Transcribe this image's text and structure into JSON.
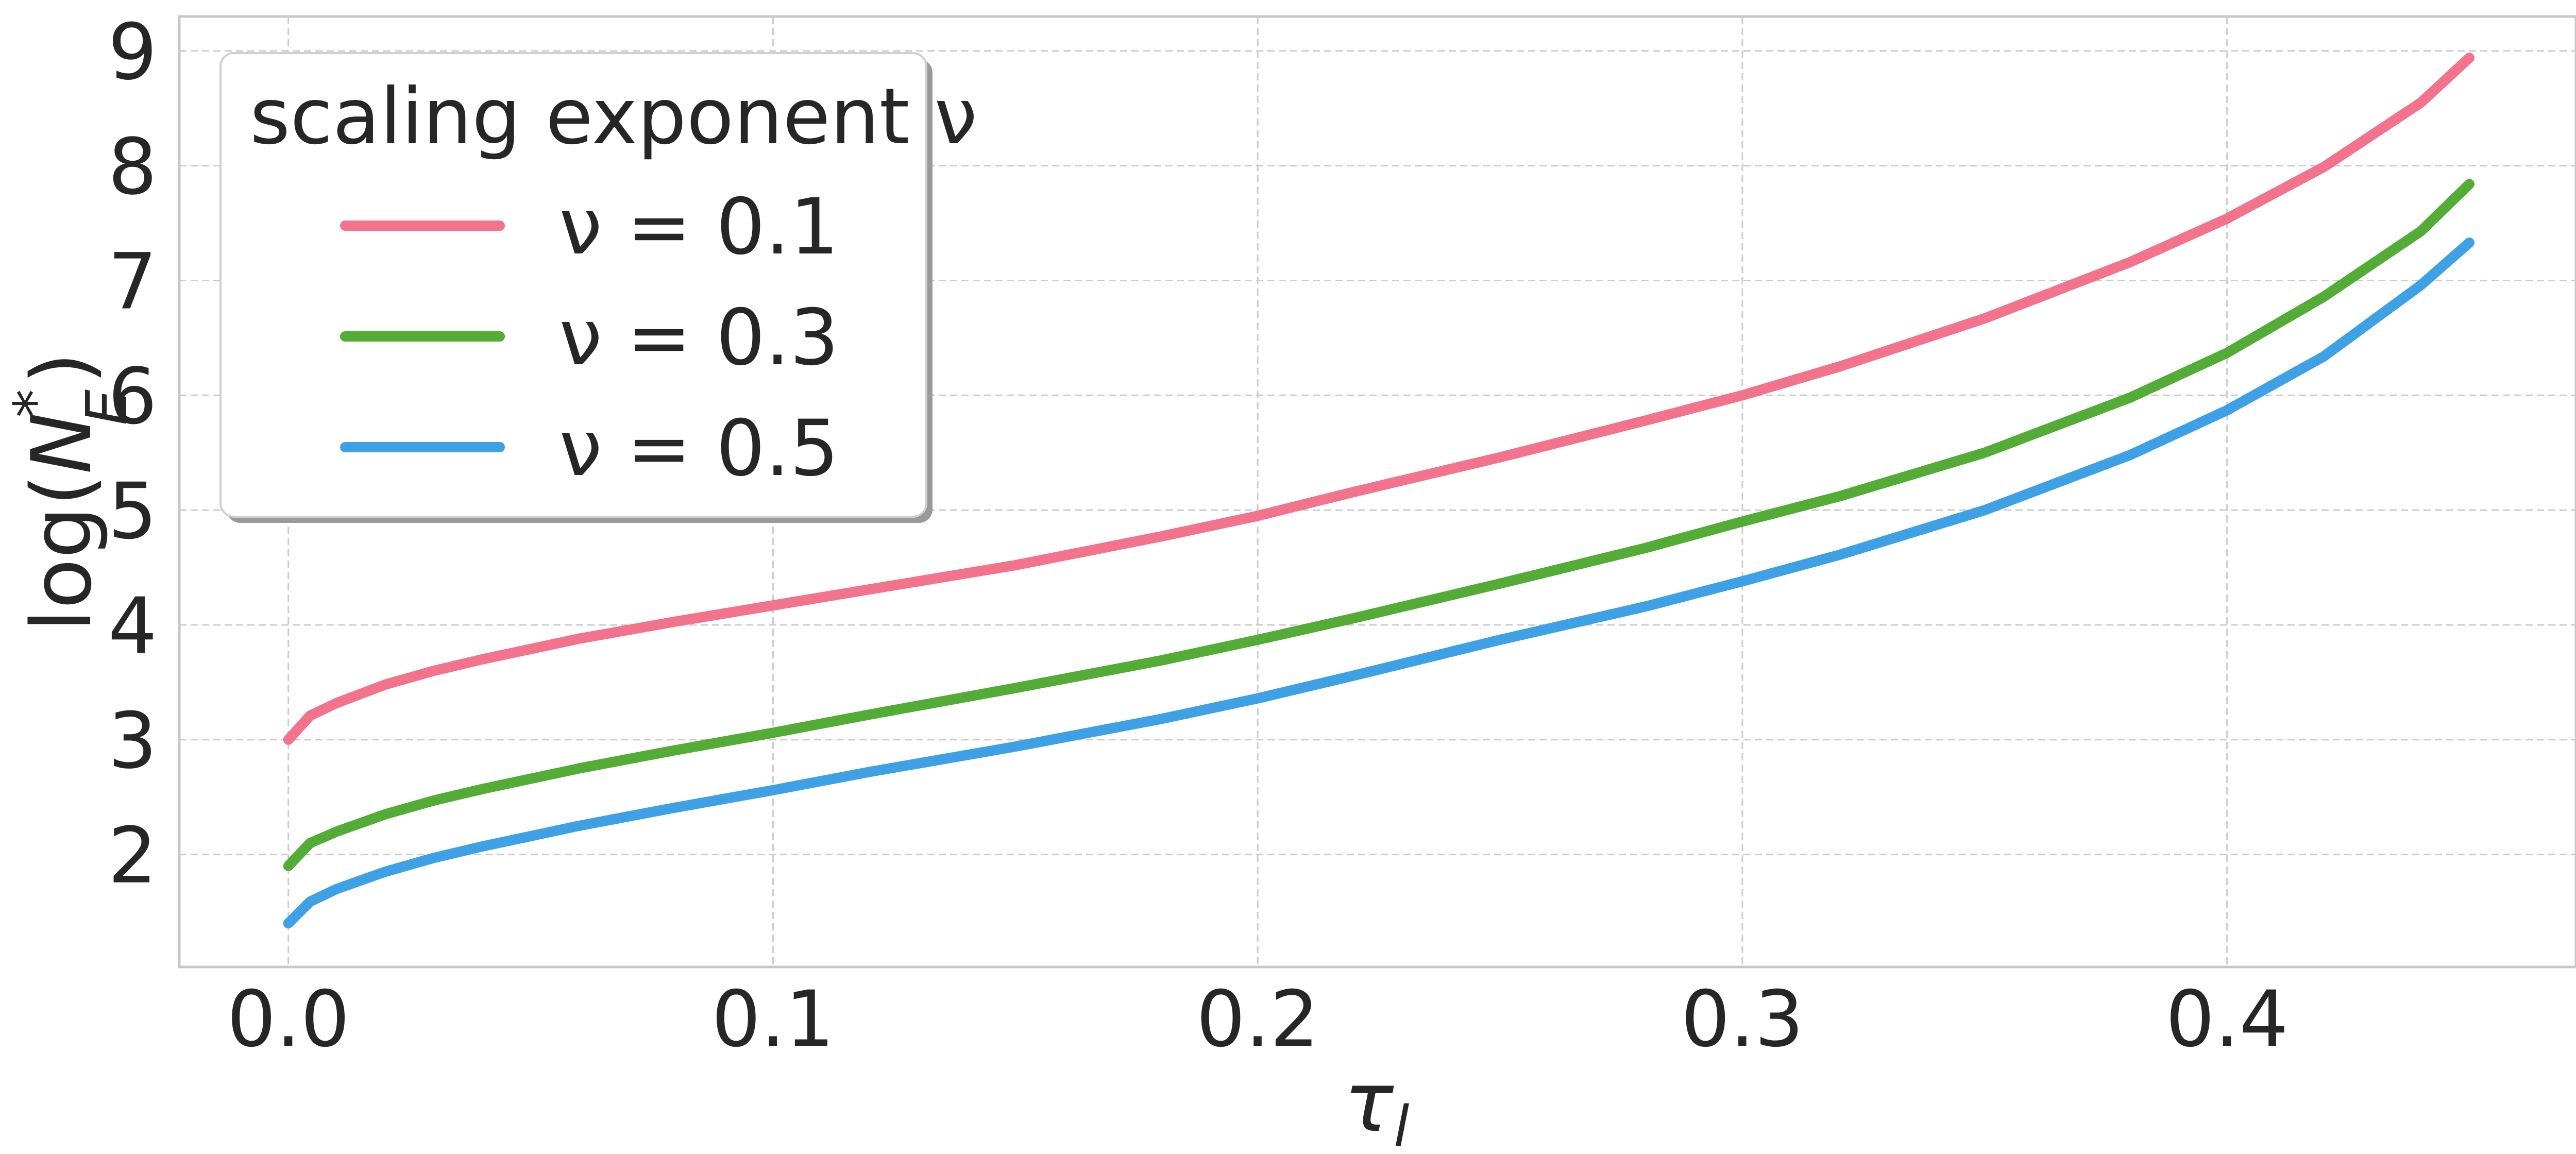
{
  "chart_data": {
    "type": "line",
    "title": "",
    "xlabel": "τ",
    "xlabel_sub": "l",
    "ylabel_prefix": "log(",
    "ylabel_var": "N",
    "ylabel_sub": "E",
    "ylabel_sup": "*",
    "ylabel_suffix": ")",
    "xlim": [
      -0.0225,
      0.472
    ],
    "ylim": [
      1.02,
      9.3
    ],
    "xticks": [
      0.0,
      0.1,
      0.2,
      0.3,
      0.4
    ],
    "xtick_labels": [
      "0.0",
      "0.1",
      "0.2",
      "0.3",
      "0.4"
    ],
    "yticks": [
      2,
      3,
      4,
      5,
      6,
      7,
      8,
      9
    ],
    "ytick_labels": [
      "2",
      "3",
      "4",
      "5",
      "6",
      "7",
      "8",
      "9"
    ],
    "grid": true,
    "legend": {
      "title": "scaling exponent ν",
      "placement": "top-left"
    },
    "x": [
      0.0,
      0.0045,
      0.01,
      0.02,
      0.03,
      0.04,
      0.05,
      0.06,
      0.08,
      0.1,
      0.12,
      0.15,
      0.18,
      0.2,
      0.22,
      0.25,
      0.28,
      0.3,
      0.32,
      0.35,
      0.38,
      0.4,
      0.42,
      0.44,
      0.45
    ],
    "series": [
      {
        "name": "ν = 0.1",
        "color": "#f2738b",
        "values": [
          3.0,
          3.21,
          3.32,
          3.48,
          3.6,
          3.7,
          3.79,
          3.88,
          4.03,
          4.17,
          4.31,
          4.52,
          4.77,
          4.95,
          5.16,
          5.46,
          5.78,
          6.0,
          6.25,
          6.67,
          7.16,
          7.54,
          7.99,
          8.55,
          8.94
        ]
      },
      {
        "name": "ν = 0.3",
        "color": "#52ac35",
        "values": [
          1.9,
          2.1,
          2.2,
          2.35,
          2.47,
          2.57,
          2.66,
          2.75,
          2.91,
          3.06,
          3.22,
          3.45,
          3.69,
          3.87,
          4.06,
          4.36,
          4.67,
          4.9,
          5.12,
          5.5,
          5.98,
          6.37,
          6.86,
          7.43,
          7.84
        ]
      },
      {
        "name": "ν = 0.5",
        "color": "#3ea1e6",
        "values": [
          1.4,
          1.59,
          1.7,
          1.85,
          1.97,
          2.07,
          2.16,
          2.25,
          2.41,
          2.56,
          2.72,
          2.94,
          3.18,
          3.36,
          3.56,
          3.87,
          4.16,
          4.38,
          4.61,
          5.0,
          5.48,
          5.87,
          6.34,
          6.96,
          7.33
        ]
      }
    ]
  }
}
